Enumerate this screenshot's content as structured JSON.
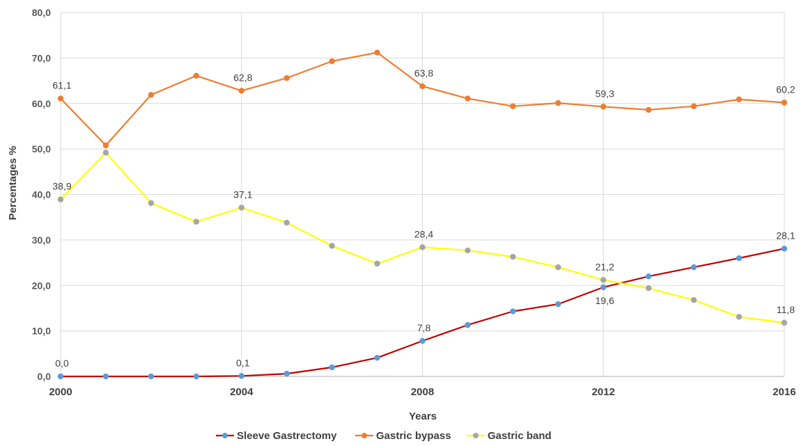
{
  "chart_data": {
    "type": "line",
    "xlabel": "Years",
    "ylabel": "Percentages %",
    "ylim": [
      0,
      80
    ],
    "yticks": [
      "0,0",
      "10,0",
      "20,0",
      "30,0",
      "40,0",
      "50,0",
      "60,0",
      "70,0",
      "80,0"
    ],
    "xlim": [
      2000,
      2016
    ],
    "xticks": [
      "2000",
      "2004",
      "2008",
      "2012",
      "2016"
    ],
    "x": [
      2000,
      2001,
      2002,
      2003,
      2004,
      2005,
      2006,
      2007,
      2008,
      2009,
      2010,
      2011,
      2012,
      2013,
      2014,
      2015,
      2016
    ],
    "grid": {
      "vertical": true,
      "horizontal": true
    },
    "legend_position": "bottom",
    "series": [
      {
        "name": "Sleeve Gastrectomy",
        "line_color": "#C00000",
        "marker_color": "#5B9BD5",
        "values": [
          0.0,
          0.0,
          0.0,
          0.0,
          0.1,
          0.6,
          2.0,
          4.1,
          7.8,
          11.3,
          14.3,
          15.9,
          19.6,
          22.0,
          24.0,
          26.0,
          28.1
        ],
        "labels": [
          {
            "index": 0,
            "text": "0,0",
            "placement": "above"
          },
          {
            "index": 4,
            "text": "0,1",
            "placement": "above"
          },
          {
            "index": 8,
            "text": "7,8",
            "placement": "above"
          },
          {
            "index": 12,
            "text": "19,6",
            "placement": "below"
          },
          {
            "index": 16,
            "text": "28,1",
            "placement": "above"
          }
        ]
      },
      {
        "name": "Gastric bypass",
        "line_color": "#ED7D31",
        "marker_color": "#ED7D31",
        "values": [
          61.1,
          50.8,
          61.9,
          66.1,
          62.8,
          65.6,
          69.3,
          71.2,
          63.8,
          61.1,
          59.4,
          60.1,
          59.3,
          58.6,
          59.4,
          60.9,
          60.2
        ],
        "labels": [
          {
            "index": 0,
            "text": "61,1",
            "placement": "above"
          },
          {
            "index": 4,
            "text": "62,8",
            "placement": "above"
          },
          {
            "index": 8,
            "text": "63,8",
            "placement": "above"
          },
          {
            "index": 12,
            "text": "59,3",
            "placement": "above"
          },
          {
            "index": 16,
            "text": "60,2",
            "placement": "above"
          }
        ]
      },
      {
        "name": "Gastric band",
        "line_color": "#FFFF00",
        "marker_color": "#A5A5A5",
        "values": [
          38.9,
          49.2,
          38.1,
          34.0,
          37.1,
          33.8,
          28.7,
          24.8,
          28.4,
          27.7,
          26.3,
          24.0,
          21.2,
          19.4,
          16.8,
          13.1,
          11.8
        ],
        "labels": [
          {
            "index": 0,
            "text": "38,9",
            "placement": "above"
          },
          {
            "index": 4,
            "text": "37,1",
            "placement": "above"
          },
          {
            "index": 8,
            "text": "28,4",
            "placement": "above"
          },
          {
            "index": 12,
            "text": "21,2",
            "placement": "above"
          },
          {
            "index": 16,
            "text": "11,8",
            "placement": "above"
          }
        ]
      }
    ]
  }
}
